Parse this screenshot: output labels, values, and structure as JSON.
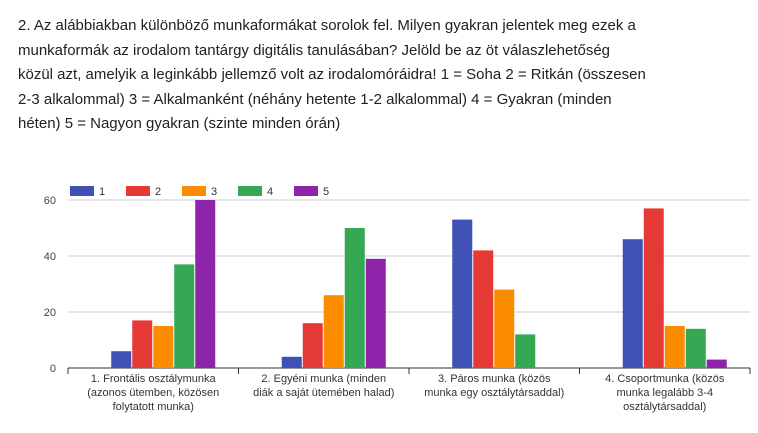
{
  "question": {
    "lines": [
      "2. Az alábbiakban különböző munkaformákat sorolok fel. Milyen gyakran jelentek meg ezek a",
      "munkaformák az irodalom tantárgy digitális tanulásában? Jelöld be az öt válaszlehetőség",
      "közül azt, amelyik a leginkább jellemző volt az irodalomóráidra! 1 = Soha 2 = Ritkán (összesen",
      "2-3 alkalommal) 3 = Alkalmanként (néhány hetente 1-2 alkalommal) 4 = Gyakran (minden",
      "héten) 5 = Nagyon gyakran (szinte minden órán)"
    ]
  },
  "chart_data": {
    "type": "bar",
    "categories": [
      [
        "1. Frontális osztálymunka",
        "(azonos ütemben, közösen",
        "folytatott munka)"
      ],
      [
        "2. Egyéni munka (minden",
        "diák a saját ütemében halad)"
      ],
      [
        "3. Páros munka (közös",
        "munka egy osztálytársaddal)"
      ],
      [
        "4. Csoportmunka (közös",
        "munka legalább 3-4",
        "osztálytársaddal)"
      ]
    ],
    "series": [
      {
        "name": "1",
        "color": "#3f51b5",
        "values": [
          6,
          4,
          53,
          46
        ]
      },
      {
        "name": "2",
        "color": "#e53935",
        "values": [
          17,
          16,
          42,
          57
        ]
      },
      {
        "name": "3",
        "color": "#fb8c00",
        "values": [
          15,
          26,
          28,
          15
        ]
      },
      {
        "name": "4",
        "color": "#34a853",
        "values": [
          37,
          50,
          12,
          14
        ]
      },
      {
        "name": "5",
        "color": "#8e24aa",
        "values": [
          60,
          39,
          0,
          3
        ]
      }
    ],
    "yticks": [
      0,
      20,
      40,
      60
    ],
    "ylim": [
      0,
      60
    ],
    "grid": true,
    "legend_position": "top-left",
    "title": "",
    "xlabel": "",
    "ylabel": ""
  }
}
